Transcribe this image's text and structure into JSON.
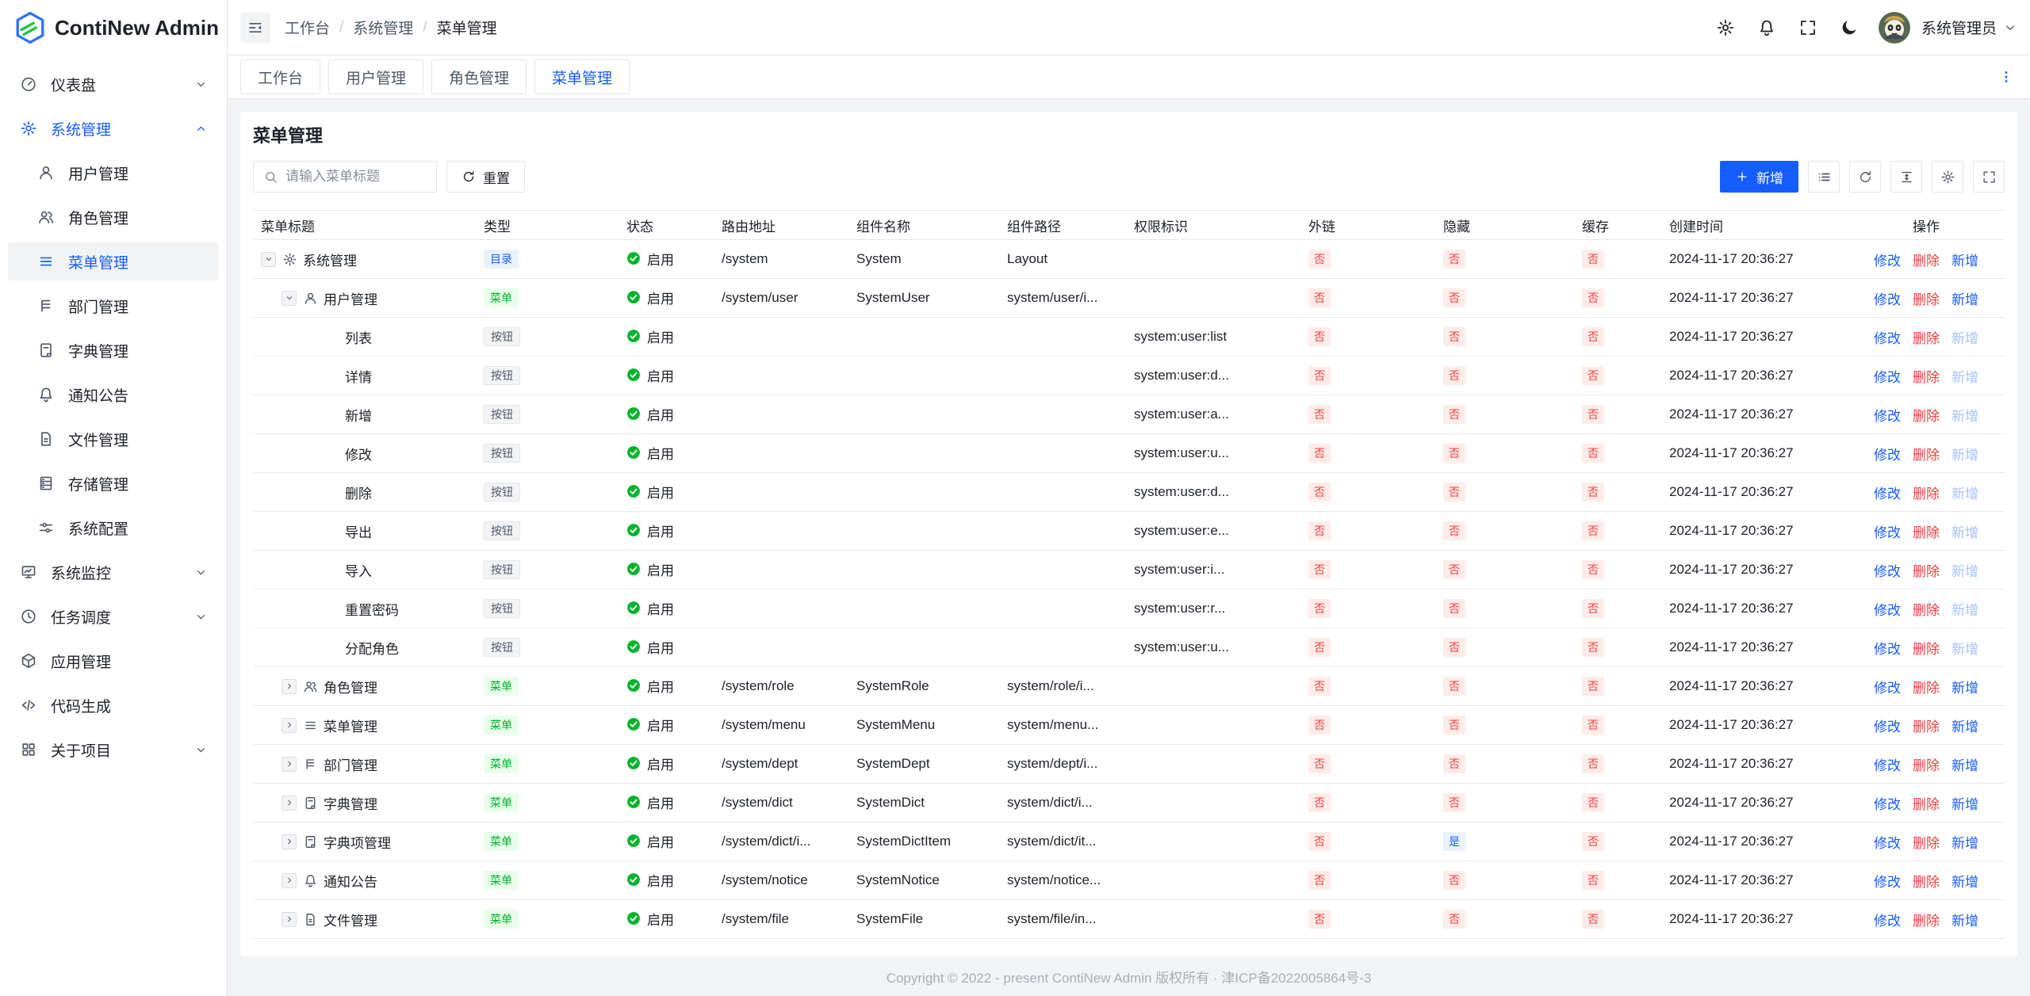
{
  "app": {
    "title": "ContiNew Admin",
    "footer": "Copyright © 2022 - present ContiNew Admin 版权所有 · 津ICP备2022005864号-3"
  },
  "palette": {
    "primary": "#165dff",
    "success": "#00b42a",
    "danger": "#f53f3f",
    "primary_bg": "#e8f3ff",
    "success_bg": "#e8ffea",
    "danger_bg": "#ffece8",
    "border": "#e5e6eb",
    "page_bg": "#f2f3f5",
    "text": "#1d2129",
    "text_secondary": "#4e5969"
  },
  "header": {
    "breadcrumb": {
      "items": [
        {
          "label": "工作台",
          "current": false
        },
        {
          "label": "系统管理",
          "current": false
        },
        {
          "label": "菜单管理",
          "current": true
        }
      ]
    },
    "icons": [
      {
        "name": "settings",
        "icon": "gear"
      },
      {
        "name": "notifications",
        "icon": "bell"
      },
      {
        "name": "fullscreen",
        "icon": "fullscreen"
      },
      {
        "name": "theme-dark",
        "icon": "moon"
      }
    ],
    "user": {
      "name": "系统管理员"
    }
  },
  "sidebar": {
    "items": [
      {
        "key": "dashboard",
        "icon": "dashboard",
        "label": "仪表盘",
        "chevron": "down"
      },
      {
        "key": "system",
        "icon": "gear",
        "label": "系统管理",
        "chevron": "up",
        "active": true,
        "open": true,
        "children": [
          {
            "key": "user",
            "icon": "user",
            "label": "用户管理"
          },
          {
            "key": "role",
            "icon": "users",
            "label": "角色管理"
          },
          {
            "key": "menu",
            "icon": "menu",
            "label": "菜单管理",
            "active": true
          },
          {
            "key": "dept",
            "icon": "tree",
            "label": "部门管理"
          },
          {
            "key": "dict",
            "icon": "dict",
            "label": "字典管理"
          },
          {
            "key": "notice",
            "icon": "bell",
            "label": "通知公告"
          },
          {
            "key": "file",
            "icon": "file",
            "label": "文件管理"
          },
          {
            "key": "storage",
            "icon": "storage",
            "label": "存储管理"
          },
          {
            "key": "config",
            "icon": "sliders",
            "label": "系统配置"
          }
        ]
      },
      {
        "key": "monitor",
        "icon": "monitor",
        "label": "系统监控",
        "chevron": "down"
      },
      {
        "key": "schedule",
        "icon": "clock",
        "label": "任务调度",
        "chevron": "down"
      },
      {
        "key": "app",
        "icon": "cube",
        "label": "应用管理"
      },
      {
        "key": "codegen",
        "icon": "code",
        "label": "代码生成"
      },
      {
        "key": "about",
        "icon": "grid",
        "label": "关于项目",
        "chevron": "down"
      }
    ]
  },
  "tabs": {
    "items": [
      {
        "key": "workbench",
        "label": "工作台",
        "active": false
      },
      {
        "key": "user",
        "label": "用户管理",
        "active": false
      },
      {
        "key": "role",
        "label": "角色管理",
        "active": false
      },
      {
        "key": "menu",
        "label": "菜单管理",
        "active": true
      }
    ]
  },
  "page": {
    "title": "菜单管理",
    "search_placeholder": "请输入菜单标题",
    "reset_label": "重置",
    "add_label": "新增",
    "toolbar_icons": [
      {
        "name": "expand-all",
        "icon": "list"
      },
      {
        "name": "refresh",
        "icon": "refresh"
      },
      {
        "name": "row-height",
        "icon": "lineheight"
      },
      {
        "name": "column-settings",
        "icon": "gear"
      },
      {
        "name": "table-fullscreen",
        "icon": "fullscreen"
      }
    ]
  },
  "table": {
    "columns": [
      "菜单标题",
      "类型",
      "状态",
      "路由地址",
      "组件名称",
      "组件路径",
      "权限标识",
      "外链",
      "隐藏",
      "缓存",
      "创建时间",
      "操作"
    ],
    "status_enabled": "启用",
    "tag_labels": {
      "dir": "目录",
      "menu": "菜单",
      "button": "按钮",
      "yes": "是",
      "no": "否"
    },
    "action_labels": {
      "edit": "修改",
      "delete": "删除",
      "add": "新增"
    },
    "rows": [
      {
        "title": "系统管理",
        "level": 0,
        "expand": "down",
        "icon": "gear",
        "type": "dir",
        "route": "/system",
        "component": "System",
        "path": "Layout",
        "permission": "",
        "external": "no",
        "hidden": "no",
        "cache": "no",
        "created": "2024-11-17 20:36:27",
        "add_disabled": false
      },
      {
        "title": "用户管理",
        "level": 1,
        "expand": "down",
        "icon": "user",
        "type": "menu",
        "route": "/system/user",
        "component": "SystemUser",
        "path": "system/user/i...",
        "permission": "",
        "external": "no",
        "hidden": "no",
        "cache": "no",
        "created": "2024-11-17 20:36:27",
        "add_disabled": false
      },
      {
        "title": "列表",
        "level": 2,
        "expand": null,
        "icon": null,
        "type": "button",
        "route": "",
        "component": "",
        "path": "",
        "permission": "system:user:list",
        "external": "no",
        "hidden": "no",
        "cache": "no",
        "created": "2024-11-17 20:36:27",
        "add_disabled": true
      },
      {
        "title": "详情",
        "level": 2,
        "expand": null,
        "icon": null,
        "type": "button",
        "route": "",
        "component": "",
        "path": "",
        "permission": "system:user:d...",
        "external": "no",
        "hidden": "no",
        "cache": "no",
        "created": "2024-11-17 20:36:27",
        "add_disabled": true
      },
      {
        "title": "新增",
        "level": 2,
        "expand": null,
        "icon": null,
        "type": "button",
        "route": "",
        "component": "",
        "path": "",
        "permission": "system:user:a...",
        "external": "no",
        "hidden": "no",
        "cache": "no",
        "created": "2024-11-17 20:36:27",
        "add_disabled": true
      },
      {
        "title": "修改",
        "level": 2,
        "expand": null,
        "icon": null,
        "type": "button",
        "route": "",
        "component": "",
        "path": "",
        "permission": "system:user:u...",
        "external": "no",
        "hidden": "no",
        "cache": "no",
        "created": "2024-11-17 20:36:27",
        "add_disabled": true
      },
      {
        "title": "删除",
        "level": 2,
        "expand": null,
        "icon": null,
        "type": "button",
        "route": "",
        "component": "",
        "path": "",
        "permission": "system:user:d...",
        "external": "no",
        "hidden": "no",
        "cache": "no",
        "created": "2024-11-17 20:36:27",
        "add_disabled": true
      },
      {
        "title": "导出",
        "level": 2,
        "expand": null,
        "icon": null,
        "type": "button",
        "route": "",
        "component": "",
        "path": "",
        "permission": "system:user:e...",
        "external": "no",
        "hidden": "no",
        "cache": "no",
        "created": "2024-11-17 20:36:27",
        "add_disabled": true
      },
      {
        "title": "导入",
        "level": 2,
        "expand": null,
        "icon": null,
        "type": "button",
        "route": "",
        "component": "",
        "path": "",
        "permission": "system:user:i...",
        "external": "no",
        "hidden": "no",
        "cache": "no",
        "created": "2024-11-17 20:36:27",
        "add_disabled": true
      },
      {
        "title": "重置密码",
        "level": 2,
        "expand": null,
        "icon": null,
        "type": "button",
        "route": "",
        "component": "",
        "path": "",
        "permission": "system:user:r...",
        "external": "no",
        "hidden": "no",
        "cache": "no",
        "created": "2024-11-17 20:36:27",
        "add_disabled": true
      },
      {
        "title": "分配角色",
        "level": 2,
        "expand": null,
        "icon": null,
        "type": "button",
        "route": "",
        "component": "",
        "path": "",
        "permission": "system:user:u...",
        "external": "no",
        "hidden": "no",
        "cache": "no",
        "created": "2024-11-17 20:36:27",
        "add_disabled": true
      },
      {
        "title": "角色管理",
        "level": 1,
        "expand": "right",
        "icon": "users",
        "type": "menu",
        "route": "/system/role",
        "component": "SystemRole",
        "path": "system/role/i...",
        "permission": "",
        "external": "no",
        "hidden": "no",
        "cache": "no",
        "created": "2024-11-17 20:36:27",
        "add_disabled": false
      },
      {
        "title": "菜单管理",
        "level": 1,
        "expand": "right",
        "icon": "menu",
        "type": "menu",
        "route": "/system/menu",
        "component": "SystemMenu",
        "path": "system/menu...",
        "permission": "",
        "external": "no",
        "hidden": "no",
        "cache": "no",
        "created": "2024-11-17 20:36:27",
        "add_disabled": false
      },
      {
        "title": "部门管理",
        "level": 1,
        "expand": "right",
        "icon": "tree",
        "type": "menu",
        "route": "/system/dept",
        "component": "SystemDept",
        "path": "system/dept/i...",
        "permission": "",
        "external": "no",
        "hidden": "no",
        "cache": "no",
        "created": "2024-11-17 20:36:27",
        "add_disabled": false
      },
      {
        "title": "字典管理",
        "level": 1,
        "expand": "right",
        "icon": "dict",
        "type": "menu",
        "route": "/system/dict",
        "component": "SystemDict",
        "path": "system/dict/i...",
        "permission": "",
        "external": "no",
        "hidden": "no",
        "cache": "no",
        "created": "2024-11-17 20:36:27",
        "add_disabled": false
      },
      {
        "title": "字典项管理",
        "level": 1,
        "expand": "right",
        "icon": "dict",
        "type": "menu",
        "route": "/system/dict/i...",
        "component": "SystemDictItem",
        "path": "system/dict/it...",
        "permission": "",
        "external": "no",
        "hidden": "yes",
        "cache": "no",
        "created": "2024-11-17 20:36:27",
        "add_disabled": false
      },
      {
        "title": "通知公告",
        "level": 1,
        "expand": "right",
        "icon": "bell",
        "type": "menu",
        "route": "/system/notice",
        "component": "SystemNotice",
        "path": "system/notice...",
        "permission": "",
        "external": "no",
        "hidden": "no",
        "cache": "no",
        "created": "2024-11-17 20:36:27",
        "add_disabled": false
      },
      {
        "title": "文件管理",
        "level": 1,
        "expand": "right",
        "icon": "file",
        "type": "menu",
        "route": "/system/file",
        "component": "SystemFile",
        "path": "system/file/in...",
        "permission": "",
        "external": "no",
        "hidden": "no",
        "cache": "no",
        "created": "2024-11-17 20:36:27",
        "add_disabled": false
      }
    ]
  }
}
